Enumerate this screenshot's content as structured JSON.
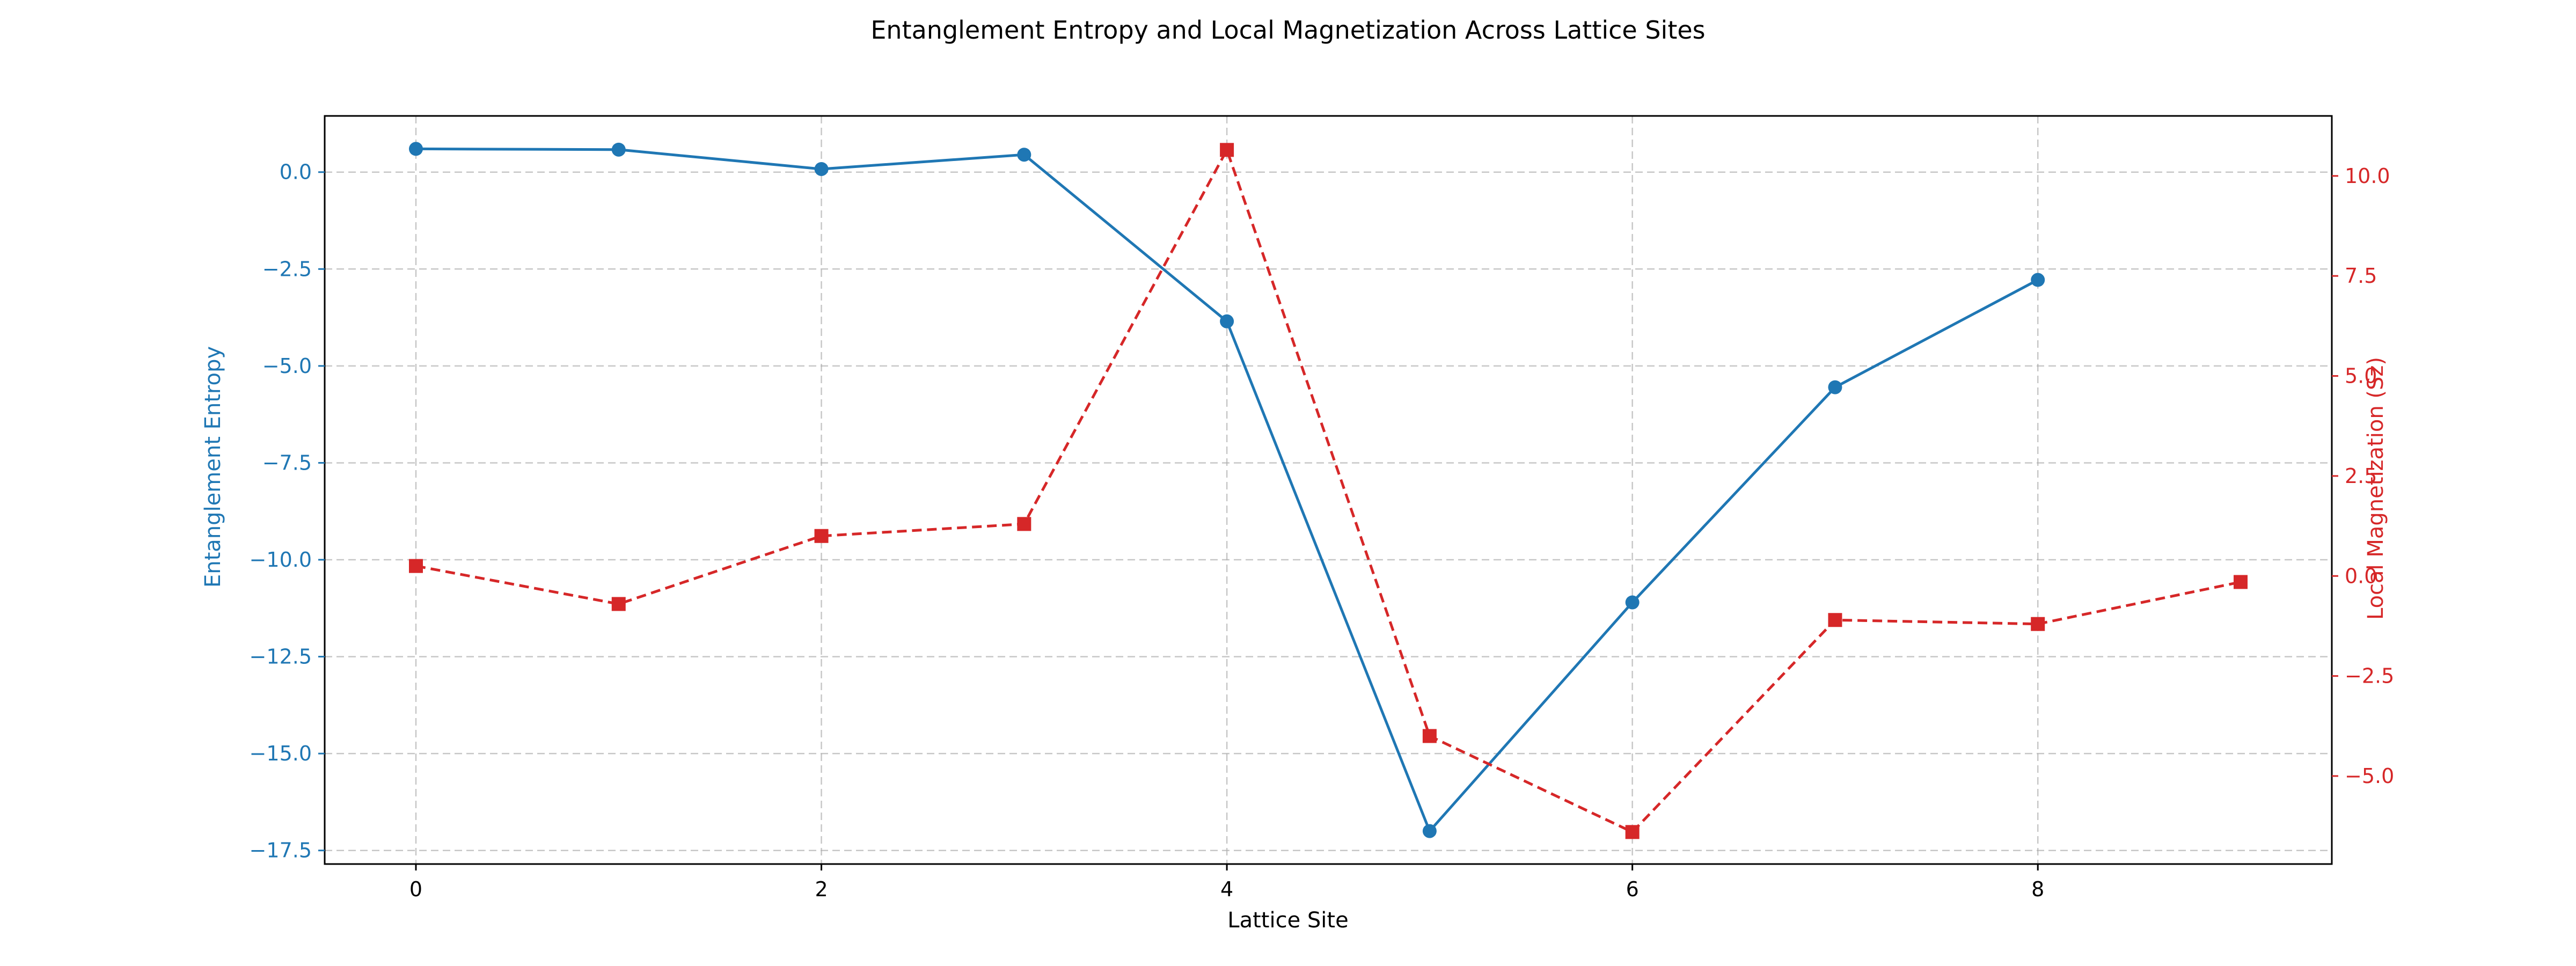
{
  "chart_data": {
    "type": "line",
    "title": "Entanglement Entropy and Local Magnetization Across Lattice Sites",
    "xlabel": "Lattice Site",
    "xlim": [
      -0.45,
      9.45
    ],
    "xticks": [
      0,
      2,
      4,
      6,
      8
    ],
    "grid": true,
    "axes": {
      "left": {
        "label": "Entanglement Entropy",
        "color": "#1f77b4",
        "ylim": [
          -17.85,
          1.45
        ],
        "ticks": [
          0.0,
          -2.5,
          -5.0,
          -7.5,
          -10.0,
          -12.5,
          -15.0,
          -17.5
        ],
        "tick_labels": [
          "0.0",
          "−2.5",
          "−5.0",
          "−7.5",
          "−10.0",
          "−12.5",
          "−15.0",
          "−17.5"
        ]
      },
      "right": {
        "label": "Local Magnetization (Sz)",
        "color": "#d62728",
        "ylim": [
          -7.2,
          11.5
        ],
        "ticks": [
          10.0,
          7.5,
          5.0,
          2.5,
          0.0,
          -2.5,
          -5.0
        ],
        "tick_labels": [
          "10.0",
          "7.5",
          "5.0",
          "2.5",
          "0.0",
          "−2.5",
          "−5.0"
        ]
      }
    },
    "series": [
      {
        "axis": "left",
        "color": "#1f77b4",
        "line_style": "solid",
        "marker": "circle",
        "x": [
          0,
          1,
          2,
          3,
          4,
          5,
          6,
          7,
          8
        ],
        "values": [
          0.6,
          0.58,
          0.08,
          0.45,
          -3.85,
          -17.0,
          -11.1,
          -5.55,
          -2.78
        ]
      },
      {
        "axis": "right",
        "color": "#d62728",
        "line_style": "dashed",
        "marker": "square",
        "x": [
          0,
          1,
          2,
          3,
          4,
          5,
          6,
          7,
          8,
          9
        ],
        "values": [
          0.25,
          -0.7,
          1.0,
          1.3,
          10.65,
          -4.0,
          -6.4,
          -1.1,
          -1.2,
          -0.15
        ]
      }
    ]
  }
}
